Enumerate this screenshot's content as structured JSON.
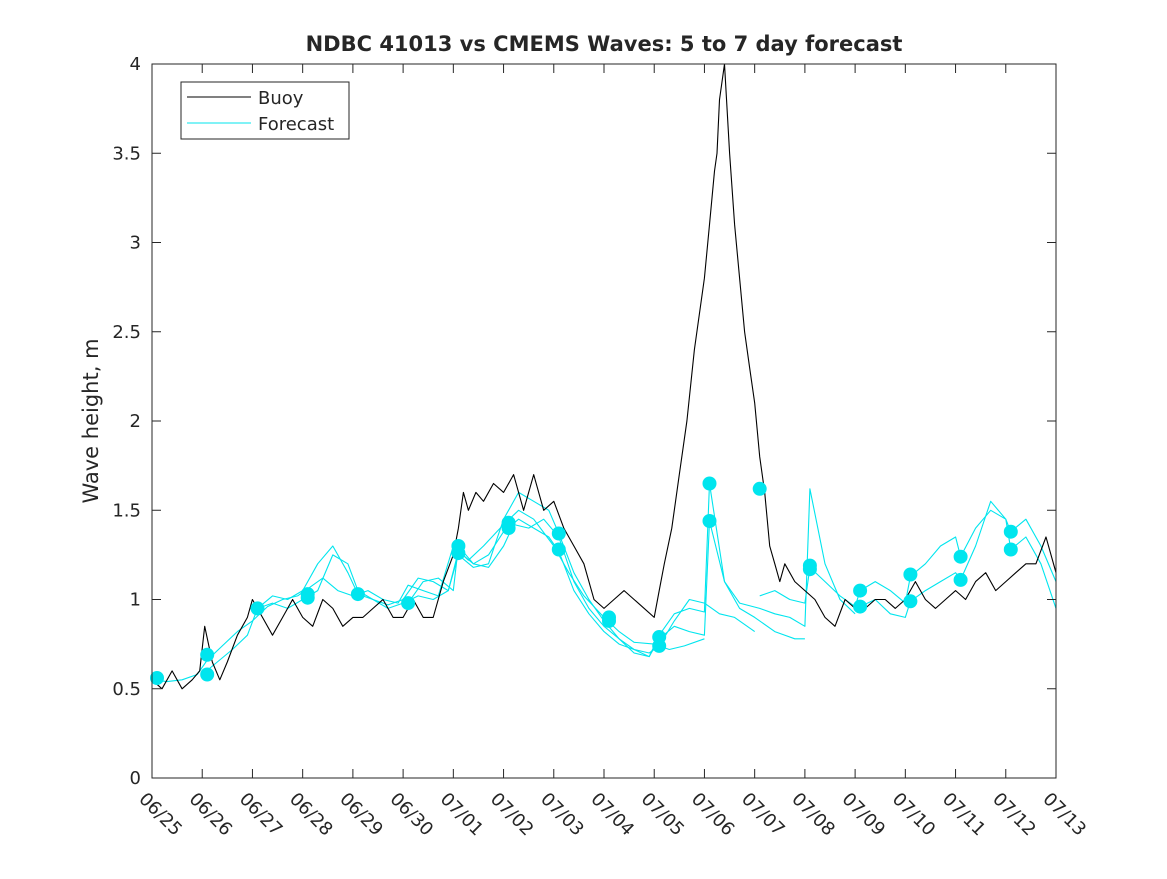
{
  "chart_data": {
    "type": "line",
    "title": "NDBC 41013 vs CMEMS Waves: 5 to 7 day forecast",
    "xlabel": "",
    "ylabel": "Wave height, m",
    "xlim": [
      0,
      18
    ],
    "ylim": [
      0,
      4
    ],
    "grid": false,
    "legend_position": "top-left",
    "x_tick_labels": [
      "06/25",
      "06/26",
      "06/27",
      "06/28",
      "06/29",
      "06/30",
      "07/01",
      "07/02",
      "07/03",
      "07/04",
      "07/05",
      "07/06",
      "07/07",
      "07/08",
      "07/09",
      "07/10",
      "07/11",
      "07/12",
      "07/13"
    ],
    "y_ticks": [
      0,
      0.5,
      1,
      1.5,
      2,
      2.5,
      3,
      3.5,
      4
    ],
    "y_tick_labels": [
      "0",
      "0.5",
      "1",
      "1.5",
      "2",
      "2.5",
      "3",
      "3.5",
      "4"
    ],
    "colors": {
      "buoy": "#000000",
      "forecast": "#00e5ee",
      "axes": "#262626"
    },
    "series": [
      {
        "name": "Buoy",
        "x": [
          0.0,
          0.2,
          0.4,
          0.6,
          0.8,
          0.95,
          1.05,
          1.2,
          1.35,
          1.5,
          1.7,
          1.9,
          2.0,
          2.2,
          2.4,
          2.6,
          2.8,
          3.0,
          3.2,
          3.4,
          3.6,
          3.8,
          4.0,
          4.2,
          4.4,
          4.6,
          4.8,
          5.0,
          5.2,
          5.4,
          5.6,
          5.8,
          6.0,
          6.1,
          6.2,
          6.3,
          6.45,
          6.6,
          6.8,
          7.0,
          7.2,
          7.4,
          7.6,
          7.8,
          8.0,
          8.2,
          8.4,
          8.6,
          8.8,
          9.0,
          9.2,
          9.4,
          9.6,
          9.8,
          10.0,
          10.1,
          10.2,
          10.35,
          10.5,
          10.65,
          10.8,
          11.0,
          11.1,
          11.2,
          11.25,
          11.3,
          11.4,
          11.5,
          11.6,
          11.7,
          11.8,
          11.9,
          12.0,
          12.1,
          12.2,
          12.3,
          12.4,
          12.5,
          12.6,
          12.8,
          13.0,
          13.2,
          13.4,
          13.6,
          13.8,
          14.0,
          14.2,
          14.4,
          14.6,
          14.8,
          15.0,
          15.2,
          15.4,
          15.6,
          15.8,
          16.0,
          16.2,
          16.4,
          16.6,
          16.8,
          17.0,
          17.2,
          17.4,
          17.6,
          17.8,
          18.0
        ],
        "y": [
          0.55,
          0.5,
          0.6,
          0.5,
          0.55,
          0.6,
          0.85,
          0.65,
          0.55,
          0.65,
          0.8,
          0.9,
          1.0,
          0.9,
          0.8,
          0.9,
          1.0,
          0.9,
          0.85,
          1.0,
          0.95,
          0.85,
          0.9,
          0.9,
          0.95,
          1.0,
          0.9,
          0.9,
          1.0,
          0.9,
          0.9,
          1.1,
          1.25,
          1.4,
          1.6,
          1.5,
          1.6,
          1.55,
          1.65,
          1.6,
          1.7,
          1.5,
          1.7,
          1.5,
          1.55,
          1.4,
          1.3,
          1.2,
          1.0,
          0.95,
          1.0,
          1.05,
          1.0,
          0.95,
          0.9,
          1.05,
          1.2,
          1.4,
          1.7,
          2.0,
          2.4,
          2.8,
          3.1,
          3.4,
          3.5,
          3.8,
          4.0,
          3.5,
          3.1,
          2.8,
          2.5,
          2.3,
          2.1,
          1.8,
          1.6,
          1.3,
          1.2,
          1.1,
          1.2,
          1.1,
          1.05,
          1.0,
          0.9,
          0.85,
          1.0,
          0.95,
          0.95,
          1.0,
          1.0,
          0.95,
          1.0,
          1.1,
          1.0,
          0.95,
          1.0,
          1.05,
          1.0,
          1.1,
          1.15,
          1.05,
          1.1,
          1.15,
          1.2,
          1.2,
          1.35,
          1.15
        ]
      },
      {
        "name": "Forecast",
        "x": [
          0.0,
          0.3,
          0.6,
          0.9,
          1.1,
          1.4,
          1.7,
          2.0,
          2.3,
          2.6,
          2.9,
          3.1,
          3.4,
          3.7,
          4.0,
          4.3,
          4.6,
          4.9,
          5.1,
          5.4,
          5.7,
          6.0,
          6.3,
          6.6,
          7.0,
          7.3,
          7.6,
          8.0,
          8.3,
          8.6,
          9.0,
          9.3,
          9.6,
          10.0,
          10.3,
          10.6,
          11.0
        ],
        "y": [
          0.55,
          0.54,
          0.55,
          0.58,
          0.66,
          0.74,
          0.82,
          0.88,
          0.96,
          1.0,
          1.02,
          1.06,
          1.12,
          1.05,
          1.02,
          1.05,
          1.0,
          0.98,
          1.08,
          1.05,
          1.02,
          1.3,
          1.22,
          1.3,
          1.42,
          1.5,
          1.45,
          1.3,
          1.15,
          1.02,
          0.9,
          0.82,
          0.76,
          0.75,
          0.72,
          0.74,
          0.78
        ]
      },
      {
        "name": "",
        "x": [
          1.0,
          1.3,
          1.6,
          1.9,
          2.1,
          2.4,
          2.7,
          3.0,
          3.3,
          3.6,
          3.9,
          4.1,
          4.4,
          4.7,
          5.0,
          5.3,
          5.6,
          5.9,
          6.1,
          6.4,
          6.7,
          7.0,
          7.3,
          7.6,
          7.9,
          8.1,
          8.4,
          8.7,
          9.0,
          9.3,
          9.6,
          9.9,
          10.1,
          10.4,
          10.7,
          11.0,
          11.3,
          11.6,
          12.0
        ],
        "y": [
          0.58,
          0.65,
          0.72,
          0.8,
          0.95,
          0.98,
          0.95,
          1.0,
          1.05,
          1.25,
          1.2,
          1.05,
          1.0,
          0.95,
          0.98,
          1.02,
          1.0,
          1.05,
          1.27,
          1.2,
          1.25,
          1.38,
          1.45,
          1.4,
          1.35,
          1.27,
          1.05,
          0.92,
          0.82,
          0.75,
          0.72,
          0.7,
          0.74,
          0.88,
          1.0,
          0.98,
          0.92,
          0.9,
          0.82
        ]
      },
      {
        "name": "",
        "x": [
          2.1,
          2.4,
          2.7,
          3.0,
          3.3,
          3.6,
          3.9,
          4.1,
          4.4,
          4.7,
          5.0,
          5.3,
          5.6,
          5.9,
          6.1,
          6.4,
          6.7,
          7.0,
          7.3,
          7.6,
          7.9,
          8.1,
          8.4,
          8.7,
          9.0,
          9.3,
          9.6,
          9.9,
          10.1,
          10.4,
          10.7,
          11.0,
          11.1,
          11.4,
          11.7,
          12.0,
          12.4,
          12.8,
          13.0
        ],
        "y": [
          0.95,
          1.02,
          1.0,
          1.05,
          1.2,
          1.3,
          1.15,
          1.03,
          1.0,
          0.97,
          1.0,
          1.12,
          1.1,
          1.05,
          1.25,
          1.18,
          1.2,
          1.45,
          1.6,
          1.55,
          1.5,
          1.37,
          1.15,
          1.0,
          0.88,
          0.78,
          0.72,
          0.68,
          0.8,
          0.92,
          0.95,
          0.93,
          1.65,
          1.1,
          0.95,
          0.9,
          0.82,
          0.78,
          0.78
        ]
      },
      {
        "name": "",
        "x": [
          5.1,
          5.4,
          5.7,
          6.0,
          6.1,
          6.4,
          6.7,
          7.0,
          7.2,
          7.5,
          7.8,
          8.1,
          8.4,
          8.7,
          9.0,
          9.3,
          9.6,
          9.9,
          10.1,
          10.4,
          10.7,
          11.0,
          11.1,
          11.4,
          11.7,
          12.1,
          12.4,
          12.7,
          13.0,
          13.1,
          13.4,
          13.7,
          14.0
        ],
        "y": [
          0.98,
          1.1,
          1.12,
          1.05,
          1.3,
          1.2,
          1.18,
          1.3,
          1.42,
          1.4,
          1.45,
          1.35,
          1.1,
          0.95,
          0.85,
          0.78,
          0.7,
          0.68,
          0.78,
          0.85,
          0.82,
          0.8,
          1.44,
          1.1,
          0.98,
          0.95,
          0.92,
          0.9,
          0.85,
          1.62,
          1.2,
          1.0,
          0.92
        ]
      },
      {
        "name": "",
        "x": [
          12.1,
          12.4,
          12.7,
          13.0,
          13.1,
          13.4,
          13.7,
          14.0,
          14.1,
          14.4,
          14.7,
          15.0,
          15.1,
          15.4,
          15.7,
          16.0,
          16.1,
          16.4,
          16.7,
          17.0,
          17.1,
          17.4,
          17.7,
          18.0
        ],
        "y": [
          1.02,
          1.05,
          1.0,
          0.98,
          1.18,
          1.1,
          1.02,
          0.96,
          1.05,
          1.1,
          1.05,
          0.98,
          1.13,
          1.2,
          1.3,
          1.35,
          1.24,
          1.4,
          1.5,
          1.45,
          1.38,
          1.45,
          1.3,
          1.1
        ]
      },
      {
        "name": "",
        "x": [
          14.1,
          14.4,
          14.7,
          15.0,
          15.1,
          15.4,
          15.7,
          16.0,
          16.1,
          16.4,
          16.7,
          17.0,
          17.1,
          17.4,
          17.7,
          18.0
        ],
        "y": [
          0.96,
          1.0,
          0.92,
          0.9,
          0.99,
          1.05,
          1.1,
          1.15,
          1.11,
          1.3,
          1.55,
          1.45,
          1.28,
          1.35,
          1.2,
          0.95
        ]
      }
    ],
    "markers": {
      "x": [
        0.1,
        1.1,
        1.1,
        2.1,
        3.1,
        3.1,
        4.1,
        5.1,
        6.1,
        6.1,
        7.1,
        7.1,
        8.1,
        8.1,
        9.1,
        9.1,
        10.1,
        10.1,
        11.1,
        11.1,
        12.1,
        13.1,
        13.1,
        14.1,
        14.1,
        15.1,
        15.1,
        16.1,
        16.1,
        17.1,
        17.1
      ],
      "y": [
        0.56,
        0.69,
        0.58,
        0.95,
        1.03,
        1.01,
        1.03,
        0.98,
        1.3,
        1.26,
        1.43,
        1.4,
        1.37,
        1.28,
        0.9,
        0.88,
        0.79,
        0.74,
        1.65,
        1.44,
        1.62,
        1.19,
        1.17,
        1.05,
        0.96,
        1.14,
        0.99,
        1.24,
        1.11,
        1.38,
        1.28
      ]
    }
  }
}
